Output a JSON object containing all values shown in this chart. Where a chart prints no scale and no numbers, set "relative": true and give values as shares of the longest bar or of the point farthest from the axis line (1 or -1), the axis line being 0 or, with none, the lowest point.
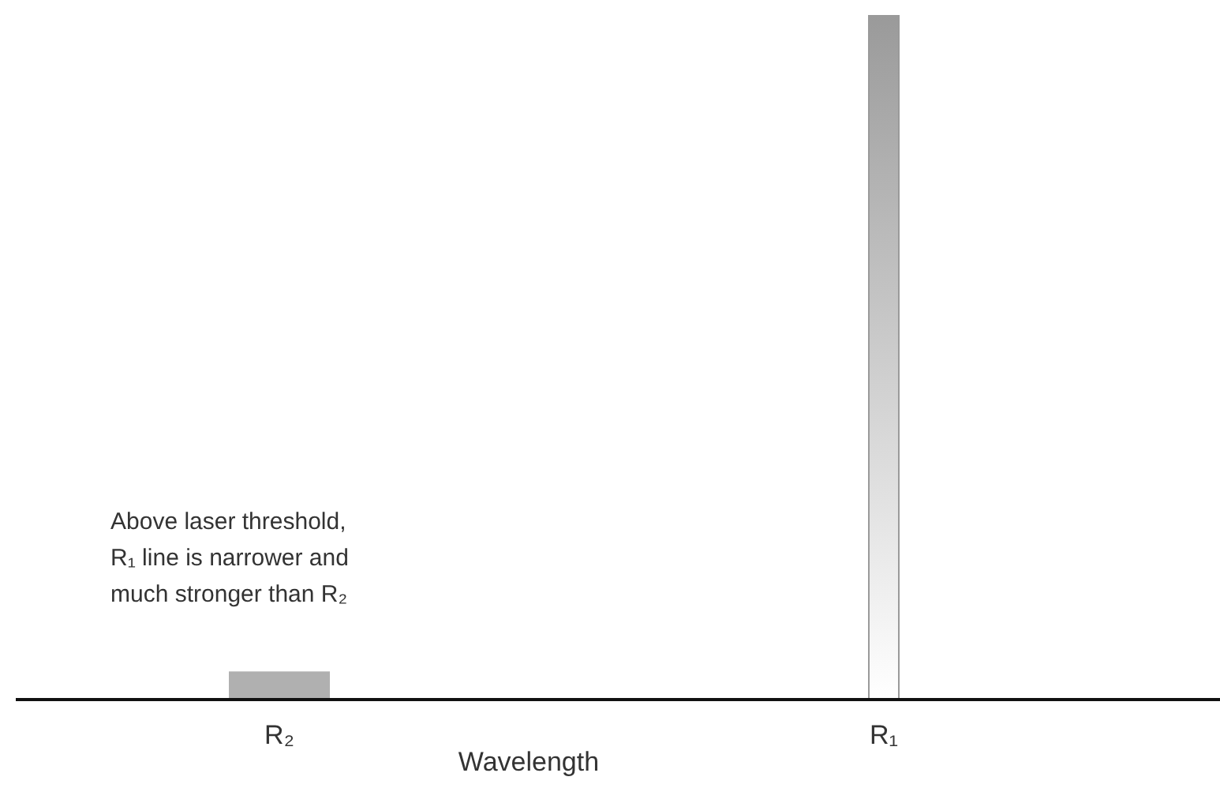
{
  "chart_data": {
    "type": "bar",
    "relative": true,
    "categories": [
      "R₂",
      "R₁"
    ],
    "values": [
      0.04,
      1
    ],
    "colors": [
      "#b0b0b0",
      "#9a9a9a"
    ],
    "xlabel": "Wavelength",
    "annotations": [
      "Above laser threshold, R₁ line is narrower and much stronger than R₂"
    ]
  }
}
